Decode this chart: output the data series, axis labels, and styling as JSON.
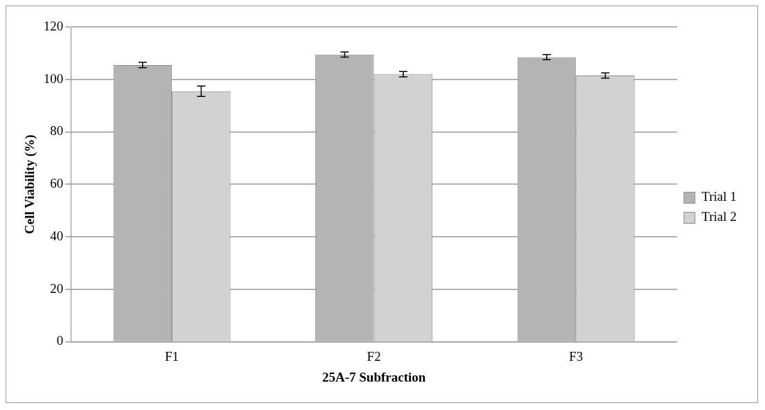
{
  "chart_data": {
    "type": "bar",
    "xlabel": "25A-7 Subfraction",
    "ylabel": "Cell Viability (%)",
    "categories": [
      "F1",
      "F2",
      "F3"
    ],
    "series": [
      {
        "name": "Trial 1",
        "color": "#b4b4b4",
        "values": [
          105.5,
          109.5,
          108.5
        ],
        "errors": [
          1,
          1,
          1
        ]
      },
      {
        "name": "Trial 2",
        "color": "#d2d2d2",
        "values": [
          95.5,
          102,
          101.5
        ],
        "errors": [
          2,
          1,
          1
        ]
      }
    ],
    "ylim": [
      0,
      120
    ],
    "yticks": [
      0,
      20,
      40,
      60,
      80,
      100,
      120
    ],
    "grid": "y",
    "legend": "right"
  }
}
